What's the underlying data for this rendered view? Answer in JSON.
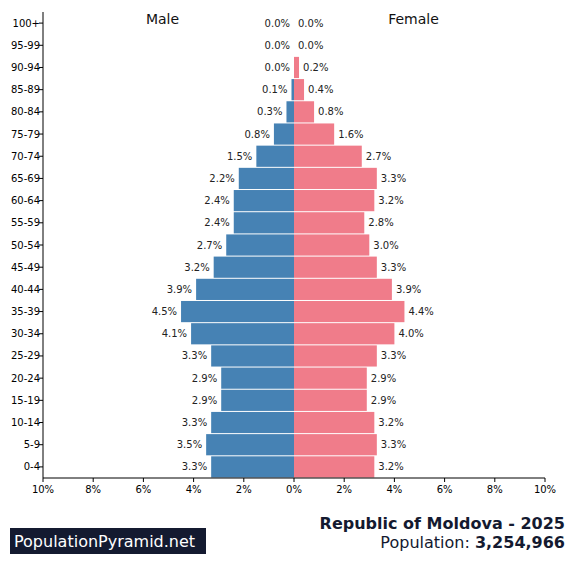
{
  "chart_data": {
    "type": "bar",
    "orientation": "horizontal",
    "title": "Republic of Moldova - 2025",
    "subtitle": "Population: 3,254,966",
    "annotations": [
      "PopulationPyramid.net"
    ],
    "categories": [
      "0-4",
      "5-9",
      "10-14",
      "15-19",
      "20-24",
      "25-29",
      "30-34",
      "35-39",
      "40-44",
      "45-49",
      "50-54",
      "55-59",
      "60-64",
      "65-69",
      "70-74",
      "75-79",
      "80-84",
      "85-89",
      "90-94",
      "95-99",
      "100+"
    ],
    "series": [
      {
        "name": "Male",
        "color": "#4682b4",
        "values": [
          3.3,
          3.5,
          3.3,
          2.9,
          2.9,
          3.3,
          4.1,
          4.5,
          3.9,
          3.2,
          2.7,
          2.4,
          2.4,
          2.2,
          1.5,
          0.8,
          0.3,
          0.1,
          0.0,
          0.0,
          0.0
        ],
        "value_labels": [
          "3.3%",
          "3.5%",
          "3.3%",
          "2.9%",
          "2.9%",
          "3.3%",
          "4.1%",
          "4.5%",
          "3.9%",
          "3.2%",
          "2.7%",
          "2.4%",
          "2.4%",
          "2.2%",
          "1.5%",
          "0.8%",
          "0.3%",
          "0.1%",
          "0.0%",
          "0.0%",
          "0.0%"
        ]
      },
      {
        "name": "Female",
        "color": "#f07c8a",
        "values": [
          3.2,
          3.3,
          3.2,
          2.9,
          2.9,
          3.3,
          4.0,
          4.4,
          3.9,
          3.3,
          3.0,
          2.8,
          3.2,
          3.3,
          2.7,
          1.6,
          0.8,
          0.4,
          0.2,
          0.0,
          0.0
        ],
        "value_labels": [
          "3.2%",
          "3.3%",
          "3.2%",
          "2.9%",
          "2.9%",
          "3.3%",
          "4.0%",
          "4.4%",
          "3.9%",
          "3.3%",
          "3.0%",
          "2.8%",
          "3.2%",
          "3.3%",
          "2.7%",
          "1.6%",
          "0.8%",
          "0.4%",
          "0.2%",
          "0.0%",
          "0.0%"
        ]
      }
    ],
    "xlim": [
      0,
      10
    ],
    "xticks": [
      {
        "value": 0,
        "label": "0%"
      },
      {
        "value": 2,
        "label": "2%"
      },
      {
        "value": 4,
        "label": "4%"
      },
      {
        "value": 6,
        "label": "6%"
      },
      {
        "value": 8,
        "label": "8%"
      },
      {
        "value": 10,
        "label": "10%"
      }
    ],
    "data_labels": true,
    "grid": false
  }
}
